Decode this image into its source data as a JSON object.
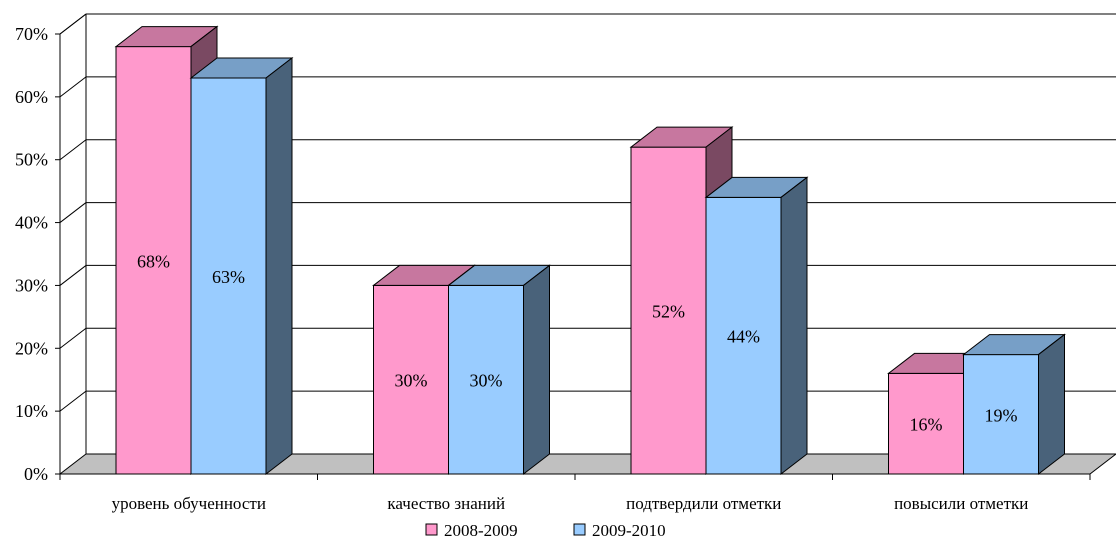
{
  "chart_data": {
    "type": "bar",
    "categories": [
      "уровень обученности",
      "качество знаний",
      "подтвердили отметки",
      "повысили отметки"
    ],
    "series": [
      {
        "name": "2008-2009",
        "values": [
          68,
          30,
          52,
          16
        ],
        "labels": [
          "68%",
          "30%",
          "52%",
          "16%"
        ],
        "color": "#ff99cc"
      },
      {
        "name": "2009-2010",
        "values": [
          63,
          30,
          44,
          19
        ],
        "labels": [
          "63%",
          "30%",
          "44%",
          "19%"
        ],
        "color": "#99ccff"
      }
    ],
    "ylim": [
      0,
      70
    ],
    "yticks": [
      "0%",
      "10%",
      "20%",
      "30%",
      "40%",
      "50%",
      "60%",
      "70%"
    ],
    "grid": true,
    "legend": "bottom",
    "style": "3d-clustered-column"
  }
}
